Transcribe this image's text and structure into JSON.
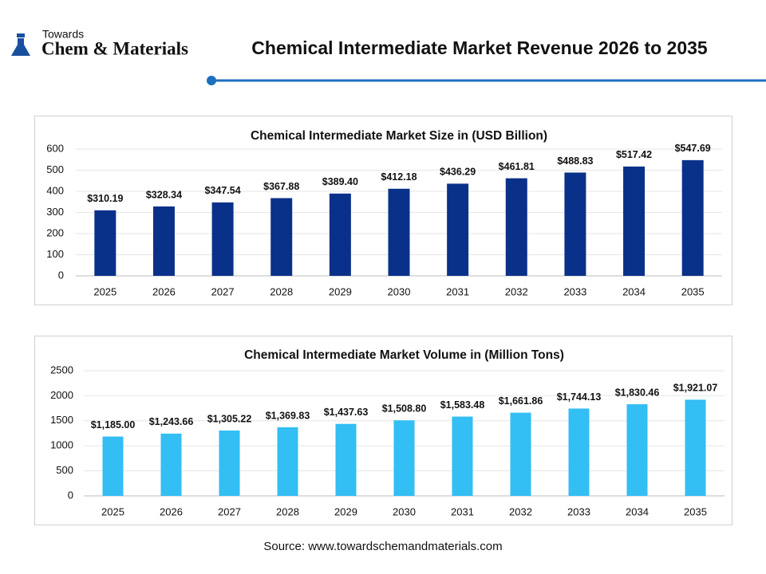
{
  "logo": {
    "top": "Towards",
    "main": "Chem & Materials"
  },
  "title": "Chemical Intermediate Market Revenue 2026 to 2035",
  "source": "Source: www.towardschemandmaterials.com",
  "chart_data": [
    {
      "type": "bar",
      "title": "Chemical Intermediate Market Size in (USD Billion)",
      "categories": [
        "2025",
        "2026",
        "2027",
        "2028",
        "2029",
        "2030",
        "2031",
        "2032",
        "2033",
        "2034",
        "2035"
      ],
      "values": [
        310.19,
        328.34,
        347.54,
        367.88,
        389.4,
        412.18,
        436.29,
        461.81,
        488.83,
        517.42,
        547.69
      ],
      "value_labels": [
        "$310.19",
        "$328.34",
        "$347.54",
        "$367.88",
        "$389.40",
        "$412.18",
        "$436.29",
        "$461.81",
        "$488.83",
        "$517.42",
        "$547.69"
      ],
      "color": "#0a3189",
      "ylim": [
        0,
        600
      ],
      "yticks": [
        0,
        100,
        200,
        300,
        400,
        500,
        600
      ],
      "grid": true
    },
    {
      "type": "bar",
      "title": "Chemical Intermediate Market Volume in (Million Tons)",
      "categories": [
        "2025",
        "2026",
        "2027",
        "2028",
        "2029",
        "2030",
        "2031",
        "2032",
        "2033",
        "2034",
        "2035"
      ],
      "values": [
        1185.0,
        1243.66,
        1305.22,
        1369.83,
        1437.63,
        1508.8,
        1583.48,
        1661.86,
        1744.13,
        1830.46,
        1921.07
      ],
      "value_labels": [
        "$1,185.00",
        "$1,243.66",
        "$1,305.22",
        "$1,369.83",
        "$1,437.63",
        "$1,508.80",
        "$1,583.48",
        "$1,661.86",
        "$1,744.13",
        "$1,830.46",
        "$1,921.07"
      ],
      "color": "#33bef4",
      "ylim": [
        0,
        2500
      ],
      "yticks": [
        0,
        500,
        1000,
        1500,
        2000,
        2500
      ],
      "grid": true
    }
  ]
}
